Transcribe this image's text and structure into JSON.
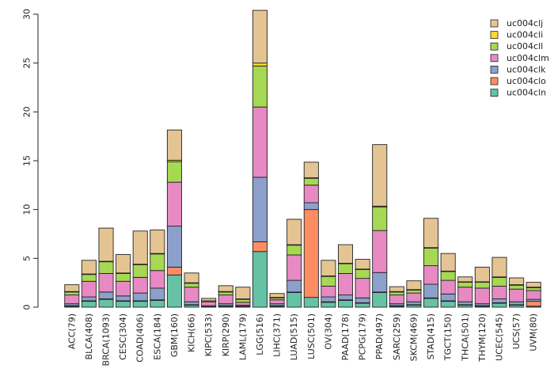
{
  "chart_data": {
    "type": "bar",
    "stacked": true,
    "title": "",
    "xlabel": "",
    "ylabel": "",
    "ylim": [
      0,
      30
    ],
    "yticks": [
      0,
      5,
      10,
      15,
      20,
      25,
      30
    ],
    "ytick_labels": [
      "0",
      "5",
      "10",
      "15",
      "20",
      "25",
      "30"
    ],
    "legend_position": "top-right",
    "categories": [
      "ACC(79)",
      "BLCA(408)",
      "BRCA(1093)",
      "CESC(304)",
      "COAD(406)",
      "ESCA(184)",
      "GBM(160)",
      "KICH(66)",
      "KIPC(533)",
      "KIRP(290)",
      "LAML(179)",
      "LGG(516)",
      "LIHC(371)",
      "LUAD(515)",
      "LUSC(501)",
      "OV(304)",
      "PAAD(178)",
      "PCPG(179)",
      "PPAD(497)",
      "SARC(259)",
      "SKCM(469)",
      "STAD(415)",
      "TGCT(150)",
      "THCA(501)",
      "THYM(120)",
      "UCEC(545)",
      "UCS(57)",
      "UVM(80)"
    ],
    "series": [
      {
        "name": "uc004cln",
        "color": "#66c2a5",
        "values": [
          0.1,
          0.6,
          0.8,
          0.6,
          0.6,
          0.7,
          3.3,
          0.2,
          0.05,
          0.1,
          0.05,
          5.7,
          0.1,
          1.5,
          1.0,
          0.5,
          0.7,
          0.4,
          1.5,
          0.1,
          0.2,
          0.9,
          0.6,
          0.2,
          0.1,
          0.4,
          0.2,
          0.1
        ]
      },
      {
        "name": "uc004clo",
        "color": "#fc8d62",
        "values": [
          0.05,
          0.05,
          0.05,
          0.05,
          0.05,
          0.05,
          0.8,
          0.05,
          0.0,
          0.05,
          0.05,
          1.0,
          0.05,
          0.05,
          9.0,
          0.05,
          0.05,
          0.05,
          0.05,
          0.05,
          0.05,
          0.05,
          0.05,
          0.05,
          0.05,
          0.05,
          0.05,
          0.5
        ]
      },
      {
        "name": "uc004clk",
        "color": "#8da0cb",
        "values": [
          0.2,
          0.4,
          0.7,
          0.5,
          0.8,
          1.2,
          4.2,
          0.3,
          0.1,
          0.2,
          0.1,
          6.6,
          0.2,
          1.2,
          0.7,
          0.5,
          0.5,
          0.5,
          2.0,
          0.2,
          0.3,
          1.4,
          0.7,
          0.3,
          0.2,
          0.4,
          0.3,
          0.2
        ]
      },
      {
        "name": "uc004clm",
        "color": "#e78ac3",
        "values": [
          0.9,
          1.6,
          1.9,
          1.5,
          1.6,
          1.8,
          4.5,
          1.5,
          0.4,
          0.9,
          0.3,
          7.2,
          0.4,
          2.6,
          1.8,
          1.1,
          2.2,
          2.0,
          4.3,
          0.9,
          0.9,
          1.9,
          1.4,
          1.5,
          1.6,
          1.3,
          1.3,
          0.9
        ]
      },
      {
        "name": "uc004cll",
        "color": "#a6d854",
        "values": [
          0.3,
          0.7,
          1.2,
          0.8,
          1.3,
          1.7,
          2.1,
          0.4,
          0.1,
          0.3,
          0.3,
          4.2,
          0.2,
          1.0,
          0.7,
          1.0,
          1.0,
          0.9,
          2.4,
          0.3,
          0.3,
          1.8,
          0.9,
          0.5,
          0.6,
          0.9,
          0.4,
          0.3
        ]
      },
      {
        "name": "uc004cli",
        "color": "#ffd92f",
        "values": [
          0.05,
          0.05,
          0.05,
          0.05,
          0.05,
          0.05,
          0.15,
          0.05,
          0.0,
          0.05,
          0.05,
          0.3,
          0.05,
          0.05,
          0.05,
          0.05,
          0.05,
          0.05,
          0.1,
          0.05,
          0.05,
          0.05,
          0.05,
          0.05,
          0.05,
          0.05,
          0.05,
          0.05
        ]
      },
      {
        "name": "uc004clj",
        "color": "#e5c494",
        "values": [
          0.7,
          1.4,
          3.4,
          1.9,
          3.4,
          2.4,
          3.1,
          1.0,
          0.25,
          0.6,
          1.2,
          5.4,
          0.4,
          2.6,
          1.6,
          1.6,
          1.9,
          1.0,
          6.3,
          0.5,
          0.9,
          3.0,
          1.8,
          0.5,
          1.5,
          2.0,
          0.7,
          0.5
        ]
      }
    ]
  }
}
